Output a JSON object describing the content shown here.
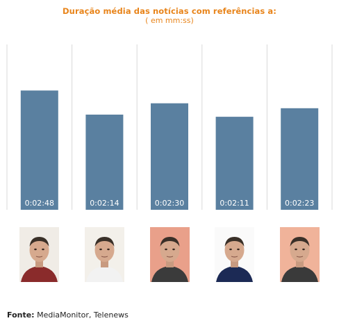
{
  "chart_data": {
    "type": "bar",
    "title": "Duração média das notícias com referências a:",
    "subtitle": "( em mm:ss)",
    "categories": [
      "",
      "",
      "",
      "",
      ""
    ],
    "values_seconds": [
      168,
      134,
      150,
      131,
      143
    ],
    "value_labels": [
      "0:02:48",
      "0:02:14",
      "0:02:30",
      "0:02:11",
      "0:02:23"
    ],
    "ylim": [
      0,
      180
    ],
    "grid": "vertical-separators",
    "bar_color": "#5a80a0"
  },
  "source": {
    "label": "Fonte:",
    "text": "MediaMonitor, Telenews"
  },
  "photos": [
    {
      "icon": "person-photo-icon",
      "bg": "#f0ece6",
      "jersey": "#8a2b2b"
    },
    {
      "icon": "person-photo-icon",
      "bg": "#f3f0ea",
      "jersey": "#f2f2f2"
    },
    {
      "icon": "person-photo-icon",
      "bg": "#e9a08a",
      "jersey": "#3b3b3b"
    },
    {
      "icon": "person-photo-icon",
      "bg": "#fafafa",
      "jersey": "#1c2a55"
    },
    {
      "icon": "person-photo-icon",
      "bg": "#f0b39a",
      "jersey": "#3a3a3a"
    }
  ]
}
